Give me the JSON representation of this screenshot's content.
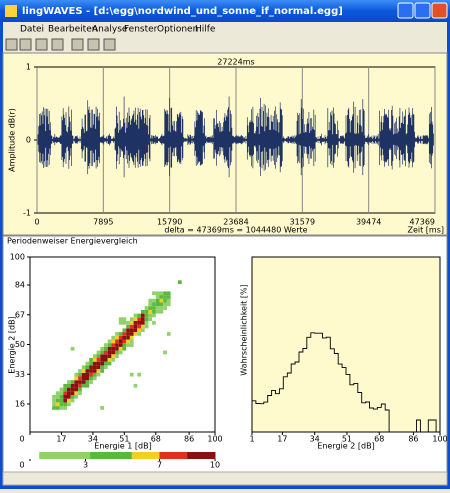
{
  "window": {
    "title": "lingWAVES - [d:\\egg\\nordwind_und_sonne_if_normal.egg]"
  },
  "menu": [
    "Datei",
    "Bearbeiten",
    "Analyse",
    "Fenster",
    "Optionen",
    "Hilfe"
  ],
  "waveform": {
    "duration_label": "27224ms",
    "ylabel": "Amplitude dB(r)",
    "ylim": [
      -1,
      1
    ],
    "yticks": [
      1,
      0,
      -1
    ],
    "xlim": [
      0,
      47369
    ],
    "xticks": [
      0,
      7895,
      15790,
      23684,
      31579,
      39474,
      47369
    ],
    "info": "delta = 47369ms = 1044480 Werte",
    "xlabel": "Zeit [ms]"
  },
  "section_title": "Periodenweiser Energievergleich",
  "scatter": {
    "ylabel": "Energie 2 [dB]",
    "xlabel": "Energie 1 [dB]",
    "xlim": [
      0,
      100
    ],
    "ylim": [
      0,
      100
    ],
    "yticks": [
      16,
      33,
      50,
      67,
      84,
      100
    ],
    "xticks": [
      0,
      17,
      34,
      51,
      68,
      86,
      100
    ],
    "colorbar_lim": [
      0,
      10
    ],
    "colorbar_ticks": [
      0,
      3,
      7,
      10
    ]
  },
  "histogram": {
    "ylabel": "Wahrscheinlichkeit [%]",
    "xlabel": "Energie 2 [dB]",
    "xlim": [
      1,
      100
    ],
    "xticks": [
      1,
      17,
      34,
      51,
      68,
      86,
      100
    ]
  }
}
